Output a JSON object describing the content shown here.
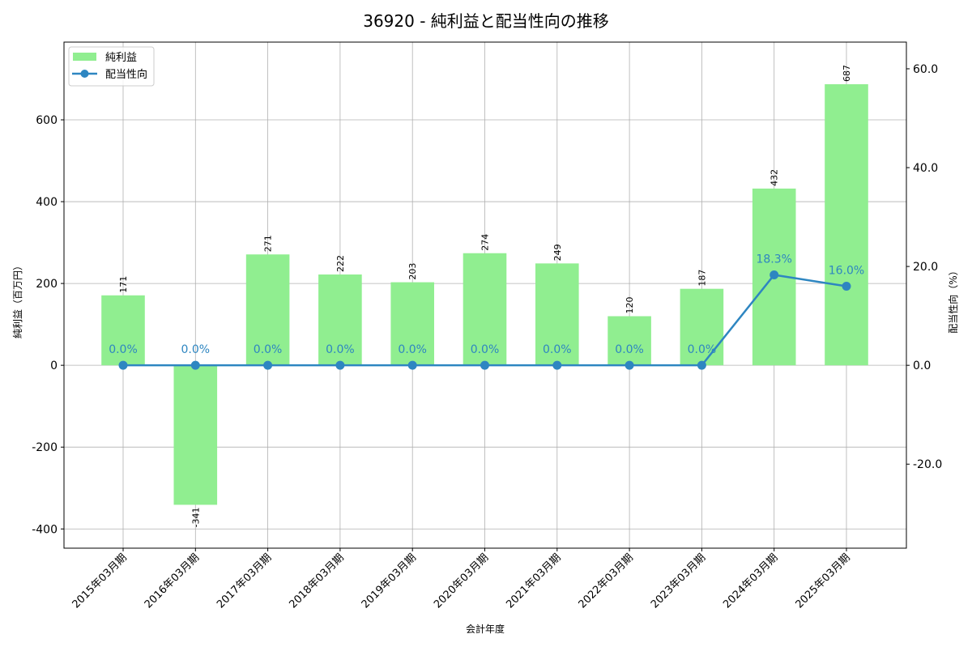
{
  "chart_data": {
    "type": "bar",
    "title": "36920 - 純利益と配当性向の推移",
    "xlabel": "会計年度",
    "ylabel": "純利益（百万円）",
    "y2label": "配当性向（%）",
    "categories": [
      "2015年03月期",
      "2016年03月期",
      "2017年03月期",
      "2018年03月期",
      "2019年03月期",
      "2020年03月期",
      "2021年03月期",
      "2022年03月期",
      "2023年03月期",
      "2024年03月期",
      "2025年03月期"
    ],
    "series": [
      {
        "name": "純利益",
        "type": "bar",
        "axis": "left",
        "color": "#90ee90",
        "values": [
          171,
          -341,
          271,
          222,
          203,
          274,
          249,
          120,
          187,
          432,
          687
        ],
        "labels": [
          "171",
          "-341",
          "271",
          "222",
          "203",
          "274",
          "249",
          "120",
          "187",
          "432",
          "687"
        ]
      },
      {
        "name": "配当性向",
        "type": "line",
        "axis": "right",
        "color": "#2e86c1",
        "values": [
          0.0,
          0.0,
          0.0,
          0.0,
          0.0,
          0.0,
          0.0,
          0.0,
          0.0,
          18.3,
          16.0
        ],
        "labels": [
          "0.0%",
          "0.0%",
          "0.0%",
          "0.0%",
          "0.0%",
          "0.0%",
          "0.0%",
          "0.0%",
          "0.0%",
          "18.3%",
          "16.0%"
        ]
      }
    ],
    "ylim": [
      -447,
      790
    ],
    "y2lim": [
      -37.0,
      65.4
    ],
    "yticks": [
      -400,
      -200,
      0,
      200,
      400,
      600
    ],
    "ytick_labels": [
      "-400",
      "-200",
      "0",
      "200",
      "400",
      "600"
    ],
    "y2ticks": [
      -20,
      0,
      20,
      40,
      60
    ],
    "y2tick_labels": [
      "-20.0",
      "0.0",
      "20.0",
      "40.0",
      "60.0"
    ],
    "grid": true,
    "legend": "top-left"
  }
}
